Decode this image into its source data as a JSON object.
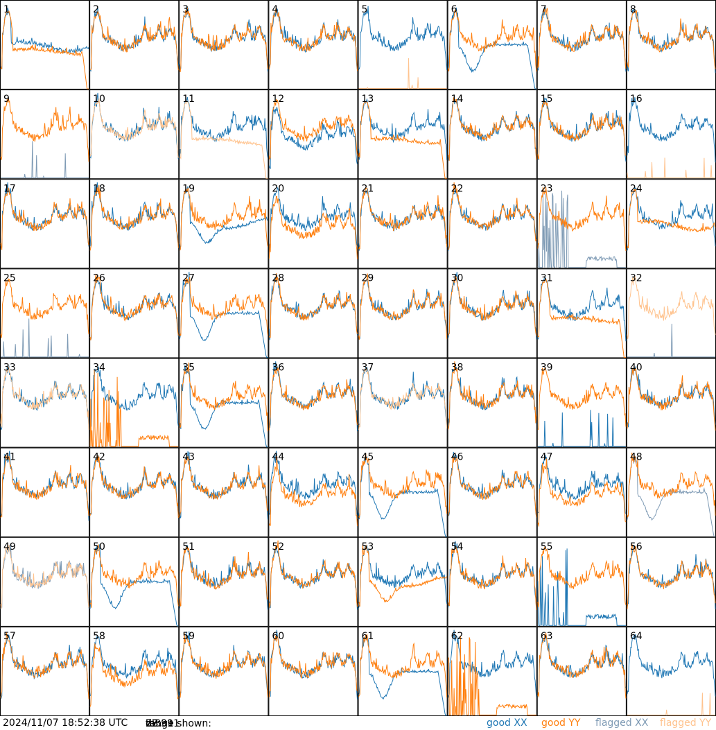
{
  "footer": {
    "timestamp": "2024/11/07 18:52:38 UTC",
    "range_prefix": "range shown:",
    "range_min": "7.391",
    "range_mid": "to",
    "range_max": "27.391",
    "range_unit": "dB"
  },
  "legend": [
    {
      "label": "good XX",
      "color": "#1f77b4"
    },
    {
      "label": "good YY",
      "color": "#ff7f0e"
    },
    {
      "label": "flagged XX",
      "color": "#7f9bb5"
    },
    {
      "label": "flagged YY",
      "color": "#ffc38e"
    }
  ],
  "chart_data": {
    "type": "line",
    "title": "",
    "xlabel": "",
    "ylabel": "",
    "ylim": [
      7.391,
      27.391
    ],
    "y_unit": "dB",
    "grid_rows": 8,
    "grid_cols": 8,
    "series_names": [
      "good XX",
      "good YY",
      "flagged XX",
      "flagged YY"
    ],
    "panels": [
      {
        "label": "1",
        "xx": "flat-low",
        "yy": "flat-low-drop",
        "xx_flagged": false,
        "yy_flagged": false
      },
      {
        "label": "2",
        "xx": "normal",
        "yy": "normal",
        "xx_flagged": false,
        "yy_flagged": false
      },
      {
        "label": "3",
        "xx": "normal",
        "yy": "normal",
        "xx_flagged": false,
        "yy_flagged": false
      },
      {
        "label": "4",
        "xx": "normal",
        "yy": "normal",
        "xx_flagged": false,
        "yy_flagged": false
      },
      {
        "label": "5",
        "xx": "normal",
        "yy": "spikes",
        "xx_flagged": false,
        "yy_flagged": true
      },
      {
        "label": "6",
        "xx": "bowl-drop",
        "yy": "normal",
        "xx_flagged": false,
        "yy_flagged": false
      },
      {
        "label": "7",
        "xx": "normal",
        "yy": "normal",
        "xx_flagged": false,
        "yy_flagged": false
      },
      {
        "label": "8",
        "xx": "normal",
        "yy": "normal",
        "xx_flagged": false,
        "yy_flagged": false
      },
      {
        "label": "9",
        "xx": "spikes",
        "yy": "normal",
        "xx_flagged": true,
        "yy_flagged": false
      },
      {
        "label": "10",
        "xx": "normal",
        "yy": "normal",
        "xx_flagged": false,
        "yy_flagged": true
      },
      {
        "label": "11",
        "xx": "normal",
        "yy": "flat-low-drop",
        "xx_flagged": false,
        "yy_flagged": true
      },
      {
        "label": "12",
        "xx": "dip",
        "yy": "normal",
        "xx_flagged": false,
        "yy_flagged": false
      },
      {
        "label": "13",
        "xx": "normal",
        "yy": "flat-low-drop",
        "xx_flagged": false,
        "yy_flagged": false
      },
      {
        "label": "14",
        "xx": "normal",
        "yy": "normal",
        "xx_flagged": false,
        "yy_flagged": false
      },
      {
        "label": "15",
        "xx": "normal",
        "yy": "normal",
        "xx_flagged": false,
        "yy_flagged": false
      },
      {
        "label": "16",
        "xx": "normal",
        "yy": "spikes",
        "xx_flagged": false,
        "yy_flagged": true
      },
      {
        "label": "17",
        "xx": "normal",
        "yy": "normal",
        "xx_flagged": false,
        "yy_flagged": false
      },
      {
        "label": "18",
        "xx": "normal",
        "yy": "normal",
        "xx_flagged": false,
        "yy_flagged": false
      },
      {
        "label": "19",
        "xx": "bowl",
        "yy": "normal",
        "xx_flagged": false,
        "yy_flagged": false
      },
      {
        "label": "20",
        "xx": "normal",
        "yy": "dip",
        "xx_flagged": false,
        "yy_flagged": false
      },
      {
        "label": "21",
        "xx": "normal",
        "yy": "normal",
        "xx_flagged": false,
        "yy_flagged": false
      },
      {
        "label": "22",
        "xx": "normal",
        "yy": "normal",
        "xx_flagged": false,
        "yy_flagged": false
      },
      {
        "label": "23",
        "xx": "spikes-low",
        "yy": "normal",
        "xx_flagged": true,
        "yy_flagged": false
      },
      {
        "label": "24",
        "xx": "normal",
        "yy": "flat-low",
        "xx_flagged": false,
        "yy_flagged": false
      },
      {
        "label": "25",
        "xx": "spikes",
        "yy": "normal",
        "xx_flagged": true,
        "yy_flagged": false
      },
      {
        "label": "26",
        "xx": "normal",
        "yy": "normal",
        "xx_flagged": false,
        "yy_flagged": false
      },
      {
        "label": "27",
        "xx": "bowl-drop",
        "yy": "normal",
        "xx_flagged": false,
        "yy_flagged": false
      },
      {
        "label": "28",
        "xx": "normal",
        "yy": "normal",
        "xx_flagged": false,
        "yy_flagged": false
      },
      {
        "label": "29",
        "xx": "normal",
        "yy": "normal",
        "xx_flagged": false,
        "yy_flagged": false
      },
      {
        "label": "30",
        "xx": "normal",
        "yy": "normal",
        "xx_flagged": false,
        "yy_flagged": false
      },
      {
        "label": "31",
        "xx": "normal",
        "yy": "flat-low-drop",
        "xx_flagged": false,
        "yy_flagged": false
      },
      {
        "label": "32",
        "xx": "spikes",
        "yy": "normal",
        "xx_flagged": true,
        "yy_flagged": true
      },
      {
        "label": "33",
        "xx": "normal",
        "yy": "normal",
        "xx_flagged": false,
        "yy_flagged": true
      },
      {
        "label": "34",
        "xx": "normal",
        "yy": "spikes-low",
        "xx_flagged": false,
        "yy_flagged": false
      },
      {
        "label": "35",
        "xx": "bowl-drop",
        "yy": "normal",
        "xx_flagged": false,
        "yy_flagged": false
      },
      {
        "label": "36",
        "xx": "normal",
        "yy": "normal",
        "xx_flagged": false,
        "yy_flagged": false
      },
      {
        "label": "37",
        "xx": "normal",
        "yy": "normal",
        "xx_flagged": false,
        "yy_flagged": true
      },
      {
        "label": "38",
        "xx": "normal",
        "yy": "normal",
        "xx_flagged": false,
        "yy_flagged": false
      },
      {
        "label": "39",
        "xx": "spikes",
        "yy": "normal",
        "xx_flagged": false,
        "yy_flagged": false
      },
      {
        "label": "40",
        "xx": "normal",
        "yy": "normal",
        "xx_flagged": false,
        "yy_flagged": false
      },
      {
        "label": "41",
        "xx": "normal",
        "yy": "normal",
        "xx_flagged": false,
        "yy_flagged": false
      },
      {
        "label": "42",
        "xx": "normal",
        "yy": "normal",
        "xx_flagged": false,
        "yy_flagged": false
      },
      {
        "label": "43",
        "xx": "normal",
        "yy": "normal",
        "xx_flagged": false,
        "yy_flagged": false
      },
      {
        "label": "44",
        "xx": "normal",
        "yy": "dip",
        "xx_flagged": false,
        "yy_flagged": false
      },
      {
        "label": "45",
        "xx": "bowl-drop",
        "yy": "normal",
        "xx_flagged": false,
        "yy_flagged": false
      },
      {
        "label": "46",
        "xx": "normal",
        "yy": "normal",
        "xx_flagged": false,
        "yy_flagged": false
      },
      {
        "label": "47",
        "xx": "normal",
        "yy": "dip",
        "xx_flagged": false,
        "yy_flagged": false
      },
      {
        "label": "48",
        "xx": "bowl-drop",
        "yy": "normal",
        "xx_flagged": true,
        "yy_flagged": false
      },
      {
        "label": "49",
        "xx": "normal",
        "yy": "normal",
        "xx_flagged": true,
        "yy_flagged": true
      },
      {
        "label": "50",
        "xx": "bowl-drop",
        "yy": "normal",
        "xx_flagged": false,
        "yy_flagged": false
      },
      {
        "label": "51",
        "xx": "normal",
        "yy": "normal",
        "xx_flagged": false,
        "yy_flagged": false
      },
      {
        "label": "52",
        "xx": "normal",
        "yy": "normal",
        "xx_flagged": false,
        "yy_flagged": false
      },
      {
        "label": "53",
        "xx": "normal",
        "yy": "bowl",
        "xx_flagged": false,
        "yy_flagged": false
      },
      {
        "label": "54",
        "xx": "normal",
        "yy": "normal",
        "xx_flagged": false,
        "yy_flagged": false
      },
      {
        "label": "55",
        "xx": "spikes-low",
        "yy": "normal",
        "xx_flagged": false,
        "yy_flagged": false
      },
      {
        "label": "56",
        "xx": "normal",
        "yy": "normal",
        "xx_flagged": false,
        "yy_flagged": false
      },
      {
        "label": "57",
        "xx": "normal",
        "yy": "normal",
        "xx_flagged": false,
        "yy_flagged": false
      },
      {
        "label": "58",
        "xx": "normal",
        "yy": "dip",
        "xx_flagged": false,
        "yy_flagged": false
      },
      {
        "label": "59",
        "xx": "normal",
        "yy": "normal",
        "xx_flagged": false,
        "yy_flagged": false
      },
      {
        "label": "60",
        "xx": "normal",
        "yy": "normal",
        "xx_flagged": false,
        "yy_flagged": false
      },
      {
        "label": "61",
        "xx": "bowl-drop",
        "yy": "normal",
        "xx_flagged": false,
        "yy_flagged": false
      },
      {
        "label": "62",
        "xx": "normal",
        "yy": "spikes-low",
        "xx_flagged": false,
        "yy_flagged": false
      },
      {
        "label": "63",
        "xx": "normal",
        "yy": "normal",
        "xx_flagged": false,
        "yy_flagged": false
      },
      {
        "label": "64",
        "xx": "normal",
        "yy": "spikes",
        "xx_flagged": false,
        "yy_flagged": true
      }
    ]
  }
}
